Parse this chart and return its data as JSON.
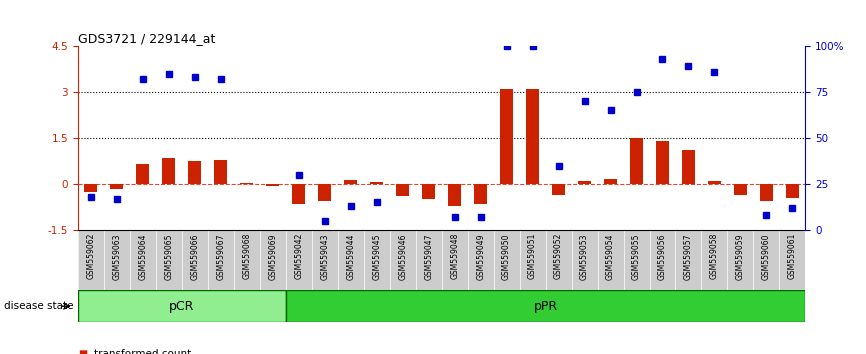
{
  "title": "GDS3721 / 229144_at",
  "samples": [
    "GSM559062",
    "GSM559063",
    "GSM559064",
    "GSM559065",
    "GSM559066",
    "GSM559067",
    "GSM559068",
    "GSM559069",
    "GSM559042",
    "GSM559043",
    "GSM559044",
    "GSM559045",
    "GSM559046",
    "GSM559047",
    "GSM559048",
    "GSM559049",
    "GSM559050",
    "GSM559051",
    "GSM559052",
    "GSM559053",
    "GSM559054",
    "GSM559055",
    "GSM559056",
    "GSM559057",
    "GSM559058",
    "GSM559059",
    "GSM559060",
    "GSM559061"
  ],
  "transformed_count": [
    -0.25,
    -0.15,
    0.65,
    0.85,
    0.75,
    0.8,
    0.05,
    -0.05,
    -0.65,
    -0.55,
    0.12,
    0.08,
    -0.4,
    -0.5,
    -0.7,
    -0.65,
    3.1,
    3.1,
    -0.35,
    0.1,
    0.15,
    1.5,
    1.4,
    1.1,
    0.1,
    -0.35,
    -0.55,
    -0.45
  ],
  "percentile_rank": [
    18,
    17,
    82,
    85,
    83,
    82,
    null,
    null,
    30,
    5,
    13,
    15,
    null,
    null,
    7,
    7,
    100,
    100,
    35,
    70,
    65,
    75,
    93,
    89,
    86,
    null,
    8,
    12
  ],
  "pCR_count": 8,
  "pPR_count": 20,
  "ylim_left": [
    -1.5,
    4.5
  ],
  "ylim_right": [
    0,
    100
  ],
  "bar_color": "#CC2200",
  "dot_color": "#0000CC",
  "pCR_color": "#90EE90",
  "pPR_color": "#32CD32",
  "axis_left_color": "#CC2200",
  "axis_right_color": "#0000CC",
  "xtick_bg_color": "#CCCCCC",
  "zero_line_color": "#CC2200"
}
